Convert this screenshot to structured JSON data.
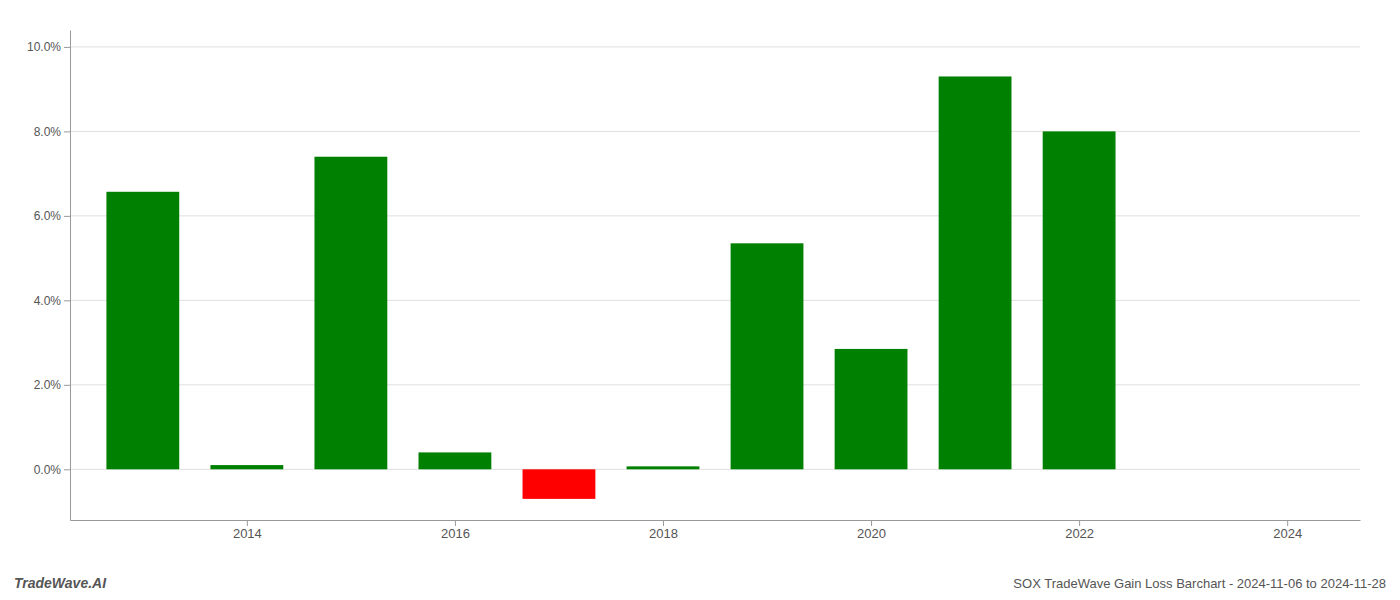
{
  "chart_data": {
    "type": "bar",
    "x": [
      2013,
      2014,
      2015,
      2016,
      2017,
      2018,
      2019,
      2020,
      2021,
      2022,
      2023
    ],
    "values": [
      0.0657,
      0.001,
      0.074,
      0.004,
      -0.007,
      0.0007,
      0.0535,
      0.0285,
      0.093,
      0.08,
      0.0
    ],
    "colors": [
      "#008000",
      "#008000",
      "#008000",
      "#008000",
      "#ff0000",
      "#008000",
      "#008000",
      "#008000",
      "#008000",
      "#008000",
      "#008000"
    ],
    "xlim": [
      2012.3,
      2024.7
    ],
    "xticks": [
      2014,
      2016,
      2018,
      2020,
      2022,
      2024
    ],
    "ylim": [
      -0.012,
      0.104
    ],
    "yticks": [
      {
        "value": 0.0,
        "label": "0.0%"
      },
      {
        "value": 0.02,
        "label": "2.0%"
      },
      {
        "value": 0.04,
        "label": "4.0%"
      },
      {
        "value": 0.06,
        "label": "6.0%"
      },
      {
        "value": 0.08,
        "label": "8.0%"
      },
      {
        "value": 0.1,
        "label": "10.0%"
      }
    ],
    "grid": true,
    "annotations": [
      "TradeWave.AI",
      "SOX TradeWave Gain Loss Barchart - 2024-11-06 to 2024-11-28"
    ]
  }
}
